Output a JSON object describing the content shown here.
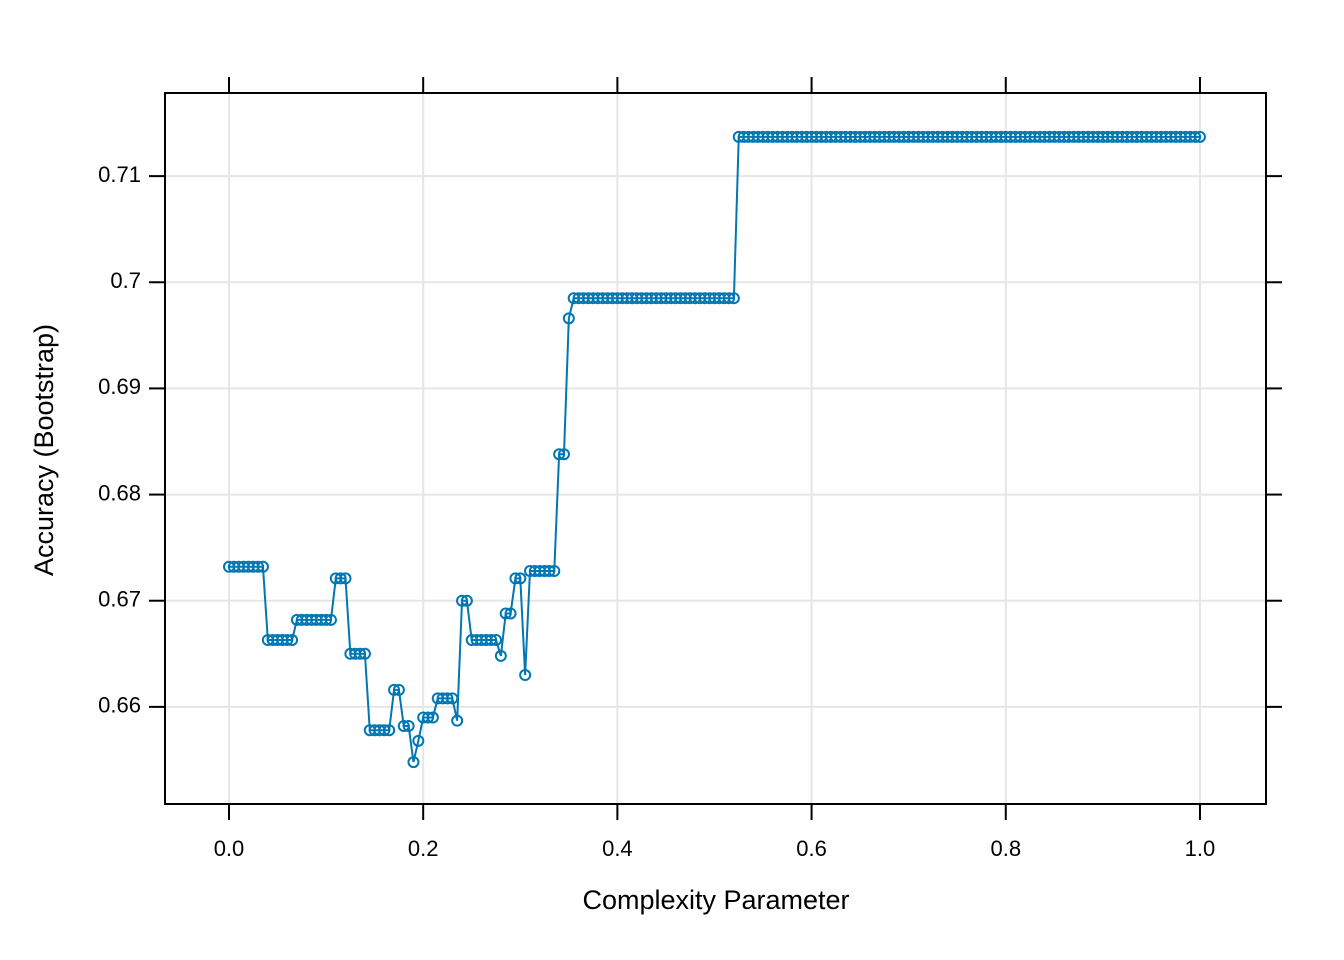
{
  "chart_data": {
    "type": "line",
    "xlabel": "Complexity Parameter",
    "ylabel": "Accuracy (Bootstrap)",
    "x": [
      0,
      0.005,
      0.01,
      0.015,
      0.02,
      0.025,
      0.03,
      0.035,
      0.04,
      0.045,
      0.05,
      0.055,
      0.06,
      0.065,
      0.07,
      0.075,
      0.08,
      0.085,
      0.09,
      0.095,
      0.1,
      0.105,
      0.11,
      0.115,
      0.12,
      0.125,
      0.13,
      0.135,
      0.14,
      0.145,
      0.15,
      0.155,
      0.16,
      0.165,
      0.17,
      0.175,
      0.18,
      0.185,
      0.19,
      0.195,
      0.2,
      0.205,
      0.21,
      0.215,
      0.22,
      0.225,
      0.23,
      0.235,
      0.24,
      0.245,
      0.25,
      0.255,
      0.26,
      0.265,
      0.27,
      0.275,
      0.28,
      0.285,
      0.29,
      0.295,
      0.3,
      0.305,
      0.31,
      0.315,
      0.32,
      0.325,
      0.33,
      0.335,
      0.34,
      0.345,
      0.35,
      0.355,
      0.36,
      0.365,
      0.37,
      0.375,
      0.38,
      0.385,
      0.39,
      0.395,
      0.4,
      0.405,
      0.41,
      0.415,
      0.42,
      0.425,
      0.43,
      0.435,
      0.44,
      0.445,
      0.45,
      0.455,
      0.46,
      0.465,
      0.47,
      0.475,
      0.48,
      0.485,
      0.49,
      0.495,
      0.5,
      0.505,
      0.51,
      0.515,
      0.52,
      0.525,
      0.53,
      0.535,
      0.54,
      0.545,
      0.55,
      0.555,
      0.56,
      0.565,
      0.57,
      0.575,
      0.58,
      0.585,
      0.59,
      0.595,
      0.6,
      0.605,
      0.61,
      0.615,
      0.62,
      0.625,
      0.63,
      0.635,
      0.64,
      0.645,
      0.65,
      0.655,
      0.66,
      0.665,
      0.67,
      0.675,
      0.68,
      0.685,
      0.69,
      0.695,
      0.7,
      0.705,
      0.71,
      0.715,
      0.72,
      0.725,
      0.73,
      0.735,
      0.74,
      0.745,
      0.75,
      0.755,
      0.76,
      0.765,
      0.77,
      0.775,
      0.78,
      0.785,
      0.79,
      0.795,
      0.8,
      0.805,
      0.81,
      0.815,
      0.82,
      0.825,
      0.83,
      0.835,
      0.84,
      0.845,
      0.85,
      0.855,
      0.86,
      0.865,
      0.87,
      0.875,
      0.88,
      0.885,
      0.89,
      0.895,
      0.9,
      0.905,
      0.91,
      0.915,
      0.92,
      0.925,
      0.93,
      0.935,
      0.94,
      0.945,
      0.95,
      0.955,
      0.96,
      0.965,
      0.97,
      0.975,
      0.98,
      0.985,
      0.99,
      0.995,
      1
    ],
    "series": [
      {
        "color": "#0077b3",
        "values": [
          0.6732,
          0.6732,
          0.6732,
          0.6732,
          0.6732,
          0.6732,
          0.6732,
          0.6732,
          0.6663,
          0.6663,
          0.6663,
          0.6663,
          0.6663,
          0.6663,
          0.6682,
          0.6682,
          0.6682,
          0.6682,
          0.6682,
          0.6682,
          0.6682,
          0.6682,
          0.6721,
          0.6721,
          0.6721,
          0.665,
          0.665,
          0.665,
          0.665,
          0.6578,
          0.6578,
          0.6578,
          0.6578,
          0.6578,
          0.6616,
          0.6616,
          0.6582,
          0.6582,
          0.6548,
          0.6568,
          0.659,
          0.659,
          0.659,
          0.6608,
          0.6608,
          0.6608,
          0.6608,
          0.6587,
          0.67,
          0.67,
          0.6663,
          0.6663,
          0.6663,
          0.6663,
          0.6663,
          0.6663,
          0.6648,
          0.6688,
          0.6688,
          0.6721,
          0.6721,
          0.663,
          0.6728,
          0.6728,
          0.6728,
          0.6728,
          0.6728,
          0.6728,
          0.6838,
          0.6838,
          0.6966,
          0.6985,
          0.6985,
          0.6985,
          0.6985,
          0.6985,
          0.6985,
          0.6985,
          0.6985,
          0.6985,
          0.6985,
          0.6985,
          0.6985,
          0.6985,
          0.6985,
          0.6985,
          0.6985,
          0.6985,
          0.6985,
          0.6985,
          0.6985,
          0.6985,
          0.6985,
          0.6985,
          0.6985,
          0.6985,
          0.6985,
          0.6985,
          0.6985,
          0.6985,
          0.6985,
          0.6985,
          0.6985,
          0.6985,
          0.6985,
          0.7137,
          0.7137,
          0.7137,
          0.7137,
          0.7137,
          0.7137,
          0.7137,
          0.7137,
          0.7137,
          0.7137,
          0.7137,
          0.7137,
          0.7137,
          0.7137,
          0.7137,
          0.7137,
          0.7137,
          0.7137,
          0.7137,
          0.7137,
          0.7137,
          0.7137,
          0.7137,
          0.7137,
          0.7137,
          0.7137,
          0.7137,
          0.7137,
          0.7137,
          0.7137,
          0.7137,
          0.7137,
          0.7137,
          0.7137,
          0.7137,
          0.7137,
          0.7137,
          0.7137,
          0.7137,
          0.7137,
          0.7137,
          0.7137,
          0.7137,
          0.7137,
          0.7137,
          0.7137,
          0.7137,
          0.7137,
          0.7137,
          0.7137,
          0.7137,
          0.7137,
          0.7137,
          0.7137,
          0.7137,
          0.7137,
          0.7137,
          0.7137,
          0.7137,
          0.7137,
          0.7137,
          0.7137,
          0.7137,
          0.7137,
          0.7137,
          0.7137,
          0.7137,
          0.7137,
          0.7137,
          0.7137,
          0.7137,
          0.7137,
          0.7137,
          0.7137,
          0.7137,
          0.7137,
          0.7137,
          0.7137,
          0.7137,
          0.7137,
          0.7137,
          0.7137,
          0.7137,
          0.7137,
          0.7137,
          0.7137,
          0.7137,
          0.7137,
          0.7137,
          0.7137,
          0.7137,
          0.7137,
          0.7137,
          0.7137,
          0.7137,
          0.7137
        ]
      }
    ],
    "xlim": [
      -0.0659,
      1.068
    ],
    "ylim": [
      0.65085,
      0.71783
    ],
    "xticks": [
      {
        "value": 0,
        "label": "0.0"
      },
      0.2,
      0.4,
      0.6,
      0.8,
      {
        "value": 1,
        "label": "1.0"
      }
    ],
    "yticks": [
      0.66,
      0.67,
      0.68,
      0.69,
      0.7,
      0.71
    ],
    "grid": true
  }
}
